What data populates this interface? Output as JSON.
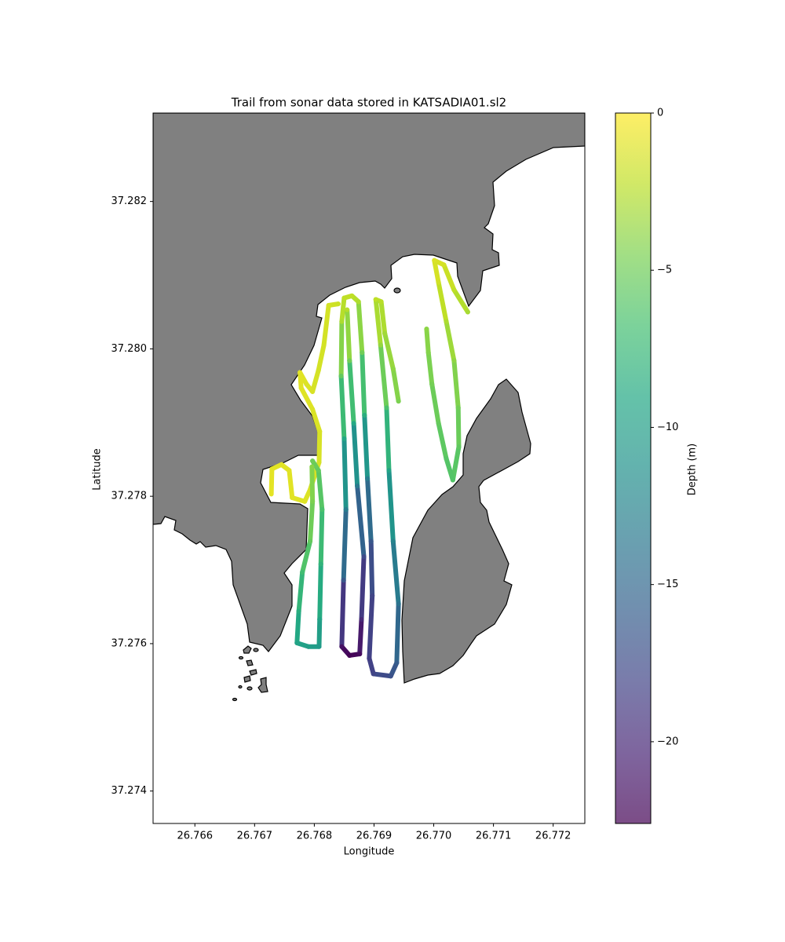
{
  "chart_data": {
    "type": "trail",
    "title": "Trail from sonar data stored in KATSADIA01.sl2",
    "x_label": "Longitude",
    "y_label": "Latitude",
    "xlim": [
      26.7653,
      26.77253
    ],
    "ylim": [
      37.27356,
      37.2832
    ],
    "xticks": [
      26.766,
      26.767,
      26.768,
      26.769,
      {
        "value": 26.77,
        "label": "26.770"
      },
      26.771,
      26.772
    ],
    "yticks": [
      37.274,
      37.276,
      37.278,
      {
        "value": 37.28,
        "label": "37.280"
      },
      37.282
    ],
    "land_color": "#808080",
    "colormap": "viridis",
    "colorbar": {
      "label": "Depth (m)",
      "lim": [
        -22.6,
        0
      ],
      "ticks": [
        0,
        {
          "value": -5,
          "label": "−5"
        },
        {
          "value": -10,
          "label": "−10"
        },
        {
          "value": -15,
          "label": "−15"
        },
        {
          "value": -20,
          "label": "−20"
        }
      ]
    },
    "tracks": [
      {
        "x": [
          26.77057,
          26.77034,
          26.77017,
          26.77001,
          26.77008,
          26.77021,
          26.77034,
          26.77041,
          26.77042,
          26.77032,
          26.77021,
          26.77008,
          26.76997,
          26.76991,
          26.76988
        ],
        "y": [
          37.2805,
          37.2808,
          37.28114,
          37.2812,
          37.2809,
          37.28037,
          37.27984,
          37.2792,
          37.27867,
          37.27822,
          37.27851,
          37.27899,
          37.27952,
          37.27995,
          37.28027
        ],
        "depth": [
          -3.0,
          -2.2,
          -1.5,
          -1.2,
          -1.6,
          -2.8,
          -3.8,
          -4.8,
          -5.6,
          -6.2,
          -6.0,
          -5.4,
          -4.8,
          -4.2,
          -3.9
        ]
      },
      {
        "x": [
          26.76941,
          26.76932,
          26.76918,
          26.76912,
          26.76903,
          26.76911,
          26.76921,
          26.76925,
          26.76932,
          26.76941,
          26.76938,
          26.76928,
          26.76899,
          26.76892,
          26.76897,
          26.76895,
          26.76889,
          26.76884,
          26.7688,
          26.76874,
          26.76863,
          26.7685,
          26.76846,
          26.76845,
          26.7685,
          26.76853,
          26.76849,
          26.76846,
          26.76859,
          26.76876,
          26.76879,
          26.76883,
          26.76872,
          26.76866,
          26.76859,
          26.76855
        ],
        "y": [
          37.27929,
          37.27973,
          37.28021,
          37.28064,
          37.28067,
          37.28005,
          37.2792,
          37.27835,
          37.27739,
          37.27654,
          37.27574,
          37.27556,
          37.27559,
          37.2758,
          37.27665,
          37.27739,
          37.27824,
          37.2791,
          37.27995,
          37.28064,
          37.28072,
          37.28069,
          37.28037,
          37.27963,
          37.27878,
          37.27782,
          37.27686,
          37.27596,
          37.27584,
          37.27586,
          37.27633,
          37.27718,
          37.27814,
          37.27899,
          37.27984,
          37.28053
        ],
        "depth": [
          -4.5,
          -3.8,
          -3.2,
          -2.4,
          -2.2,
          -3.6,
          -6.5,
          -9.5,
          -12.5,
          -14.0,
          -16.0,
          -17.0,
          -18.0,
          -18.5,
          -18.0,
          -16.5,
          -13.0,
          -8.5,
          -5.0,
          -2.8,
          -2.2,
          -2.2,
          -2.8,
          -5.5,
          -9.0,
          -13.0,
          -16.5,
          -21.5,
          -22.5,
          -22.0,
          -20.0,
          -17.5,
          -13.5,
          -9.0,
          -5.0,
          -2.5
        ]
      },
      {
        "x": [
          26.7684,
          26.76824,
          26.76816,
          26.76807,
          26.76797,
          26.76787,
          26.76776,
          26.76778,
          26.76797,
          26.76809,
          26.76808,
          26.76793,
          26.76784,
          26.76763,
          26.76758,
          26.76745,
          26.76729,
          26.76728
        ],
        "y": [
          37.28061,
          37.28059,
          37.28005,
          37.27971,
          37.27942,
          37.27952,
          37.27968,
          37.27947,
          37.27918,
          37.27888,
          37.27846,
          37.27809,
          37.27793,
          37.27798,
          37.27835,
          37.27843,
          37.27837,
          37.27803
        ],
        "depth": [
          -1.8,
          -1.5,
          -1.5,
          -1.5,
          -1.3,
          -1.2,
          -1.0,
          -1.0,
          -1.2,
          -1.3,
          -1.4,
          -1.2,
          -1.1,
          -1.0,
          -1.0,
          -1.0,
          -0.9,
          -0.9
        ]
      },
      {
        "x": [
          26.76797,
          26.76807,
          26.76813,
          26.76811,
          26.76809,
          26.76808,
          26.7679,
          26.76771,
          26.76774,
          26.7678,
          26.76793,
          26.76797,
          26.76796
        ],
        "y": [
          37.27848,
          37.27835,
          37.27782,
          37.27708,
          37.27633,
          37.27596,
          37.27596,
          37.27601,
          37.27644,
          37.27697,
          37.27739,
          37.27793,
          37.2784
        ],
        "depth": [
          -5.0,
          -5.5,
          -6.5,
          -8.0,
          -9.5,
          -10.5,
          -10.0,
          -9.5,
          -8.5,
          -7.0,
          -5.5,
          -4.5,
          -4.0
        ]
      }
    ]
  }
}
